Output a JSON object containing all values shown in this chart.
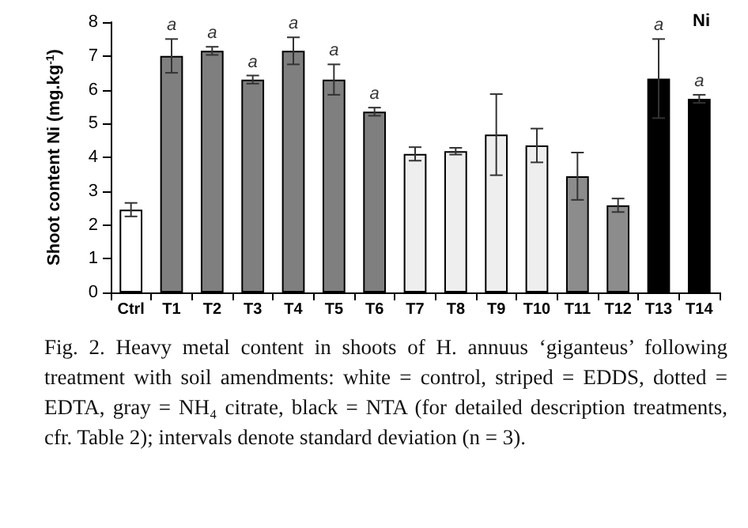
{
  "chart_data": {
    "type": "bar",
    "ylabel": "Shoot content Ni (mg.kg$^{-1}$)",
    "categories": [
      "Ctrl",
      "T1",
      "T2",
      "T3",
      "T4",
      "T5",
      "T6",
      "T7",
      "T8",
      "T9",
      "T10",
      "T11",
      "T12",
      "T13",
      "T14"
    ],
    "values": [
      2.45,
      7.0,
      7.15,
      6.3,
      7.15,
      6.3,
      5.35,
      4.1,
      4.18,
      4.67,
      4.35,
      3.44,
      2.58,
      6.33,
      5.73
    ],
    "errors": [
      0.2,
      0.5,
      0.12,
      0.12,
      0.4,
      0.45,
      0.12,
      0.2,
      0.1,
      1.2,
      0.5,
      0.7,
      0.2,
      1.17,
      0.12
    ],
    "colors": [
      "#ffffff",
      "#7f7f7f",
      "#7f7f7f",
      "#7f7f7f",
      "#7f7f7f",
      "#7f7f7f",
      "#7f7f7f",
      "#eeeeee",
      "#eeeeee",
      "#eeeeee",
      "#eeeeee",
      "#8c8c8c",
      "#8c8c8c",
      "#000000",
      "#000000"
    ],
    "ylim": [
      0,
      8
    ],
    "yticks": [
      0,
      1,
      2,
      3,
      4,
      5,
      6,
      7,
      8
    ],
    "grid": false,
    "annotations": [
      "Ni",
      {
        "text": "a",
        "x": "T1",
        "y": 7.0
      },
      {
        "text": "a",
        "x": "T2",
        "y": 7.15
      },
      {
        "text": "a",
        "x": "T3",
        "y": 6.3
      },
      {
        "text": "a",
        "x": "T4",
        "y": 7.15
      },
      {
        "text": "a",
        "x": "T5",
        "y": 6.3
      },
      {
        "text": "a",
        "x": "T6",
        "y": 5.35
      },
      {
        "text": "a",
        "x": "T13",
        "y": 7.5
      },
      {
        "text": "a",
        "x": "T14",
        "y": 5.73
      },
      "Fig. 2.  Heavy metal content in shoots of H. annuus ‘giganteus’ following treatment with soil amendments: white = control, striped = EDDS, dotted = EDTA, gray = NH₄ citrate, black = NTA (for detailed description treatments, cfr. Table 2); intervals denote standard deviation (n = 3)."
    ]
  }
}
